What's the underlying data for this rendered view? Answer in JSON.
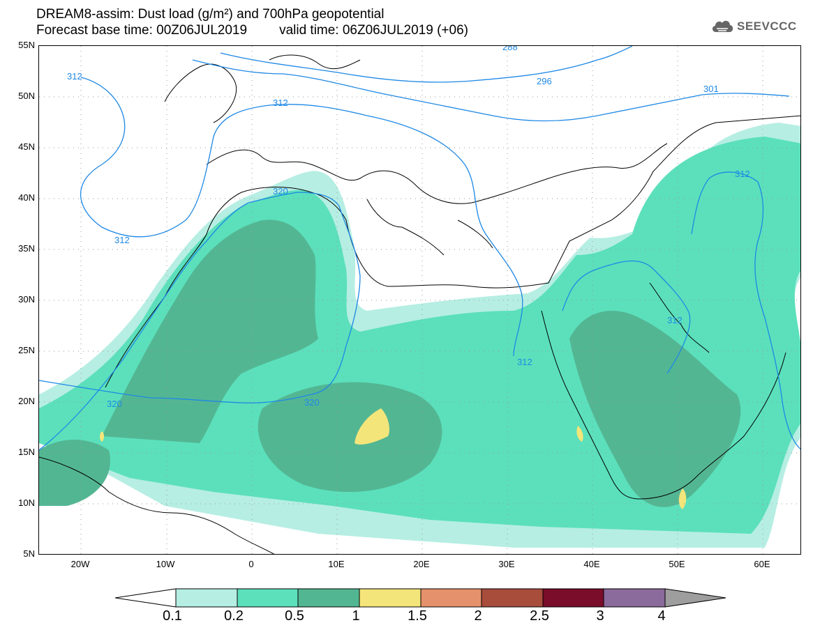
{
  "header": {
    "title_line1": "DREAM8-assim: Dust load (g/m²) and 700hPa geopotential",
    "forecast_label": "Forecast base time: 00Z06JUL2019",
    "valid_label": "valid time: 06Z06JUL2019 (+06)"
  },
  "logo": {
    "text": "SEEVCCC",
    "icon": "cloud-icon"
  },
  "axes": {
    "lat_labels": [
      "55N",
      "50N",
      "45N",
      "40N",
      "35N",
      "30N",
      "25N",
      "20N",
      "15N",
      "10N",
      "5N"
    ],
    "lon_labels": [
      "20W",
      "10W",
      "0",
      "10E",
      "20E",
      "30E",
      "40E",
      "50E",
      "60E"
    ]
  },
  "contours": {
    "labels": [
      "312",
      "312",
      "312",
      "320",
      "320",
      "320",
      "312",
      "312",
      "312",
      "296",
      "301",
      "288"
    ]
  },
  "colorbar": {
    "ticks": [
      "0.1",
      "0.2",
      "0.5",
      "1",
      "1.5",
      "2",
      "2.5",
      "3",
      "4"
    ],
    "colors": [
      "#ffffff",
      "#b6eee3",
      "#5be0bb",
      "#53b693",
      "#f4e57a",
      "#e5916b",
      "#a84c3c",
      "#7a0d2a",
      "#8b6a9c",
      "#9e9e9e"
    ]
  },
  "colors": {
    "dust_01": "#b6eee3",
    "dust_02": "#5be0bb",
    "dust_05": "#53b693",
    "dust_1": "#f4e57a",
    "contour": "#1e88e5"
  }
}
